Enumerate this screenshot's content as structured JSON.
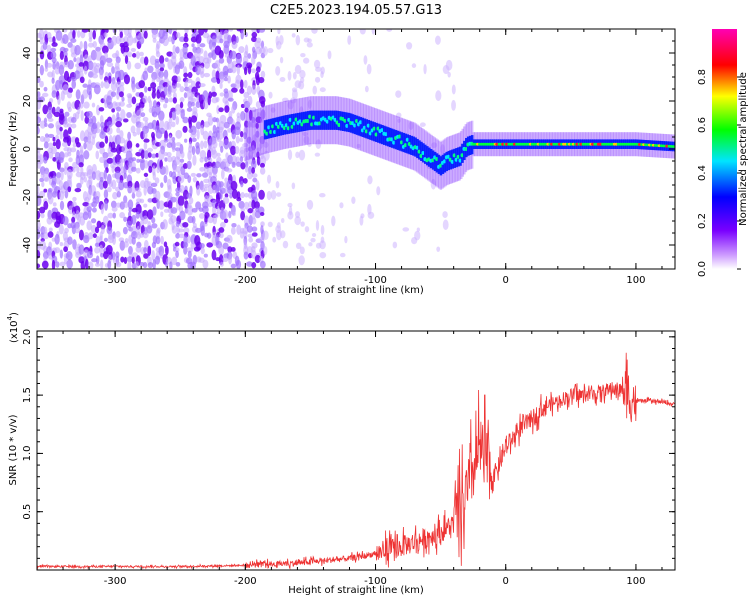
{
  "title": "C2E5.2023.194.05.57.G13",
  "chart_data": [
    {
      "type": "heatmap",
      "xlabel": "Height of straight line (km)",
      "ylabel": "Frequency (Hz)",
      "xlim": [
        -360,
        130
      ],
      "ylim": [
        -50,
        50
      ],
      "x_ticks": [
        -300,
        -200,
        -100,
        0,
        100
      ],
      "y_ticks": [
        -40,
        -20,
        0,
        20,
        40
      ],
      "colorbar": {
        "label": "Normalized spectral amplitude",
        "range": [
          0,
          1
        ],
        "ticks": [
          "0.0",
          "0.2",
          "0.4",
          "0.6",
          "0.8"
        ],
        "colors": [
          "#ffffff",
          "#8a2be2",
          "#0000ff",
          "#00e5ff",
          "#00ff00",
          "#ffff00",
          "#ff0000",
          "#ff00b4"
        ]
      },
      "signal_track": {
        "x": [
          -200,
          -185,
          -170,
          -160,
          -150,
          -140,
          -130,
          -120,
          -110,
          -100,
          -90,
          -80,
          -70,
          -60,
          -50,
          -45,
          -40,
          -35,
          -30,
          -25,
          -20,
          -10,
          0,
          10,
          50,
          100,
          130
        ],
        "y": [
          5,
          8,
          10,
          11,
          12,
          12,
          12,
          11,
          9,
          7,
          5,
          3,
          1,
          -3,
          -7,
          -5,
          -4,
          -3,
          1,
          2,
          2,
          2,
          2,
          2,
          2,
          2,
          1
        ]
      }
    },
    {
      "type": "line",
      "xlabel": "Height of straight line (km)",
      "ylabel": "SNR (10 * v/v)",
      "y_multiplier": "(x10",
      "y_multiplier_exp": "4",
      "xlim": [
        -360,
        130
      ],
      "ylim": [
        0,
        2.05
      ],
      "x_ticks": [
        -300,
        -200,
        -100,
        0,
        100
      ],
      "y_ticks": [
        "0.5",
        "1.0",
        "1.5",
        "2.0"
      ],
      "color": "#ee3333",
      "series": [
        {
          "x": [
            -360,
            -300,
            -250,
            -200,
            -180,
            -160,
            -140,
            -120,
            -100,
            -90,
            -80,
            -70,
            -60,
            -50,
            -40,
            -35,
            -30,
            -25,
            -20,
            -15,
            -10,
            -5,
            0,
            10,
            20,
            30,
            40,
            50,
            60,
            70,
            80,
            90,
            95,
            100,
            110,
            120,
            130
          ],
          "y": [
            0.03,
            0.03,
            0.03,
            0.04,
            0.05,
            0.06,
            0.08,
            0.1,
            0.14,
            0.17,
            0.2,
            0.24,
            0.28,
            0.32,
            0.4,
            0.5,
            0.65,
            0.85,
            1.05,
            0.95,
            0.8,
            0.9,
            1.05,
            1.2,
            1.3,
            1.4,
            1.45,
            1.5,
            1.5,
            1.52,
            1.55,
            1.55,
            1.5,
            1.45,
            1.45,
            1.44,
            1.42
          ]
        }
      ]
    }
  ]
}
